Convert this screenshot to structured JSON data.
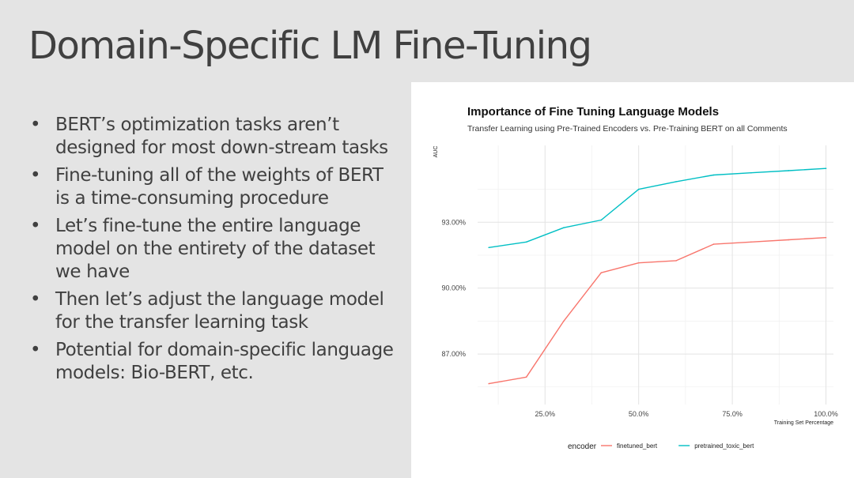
{
  "slide": {
    "title": "Domain-Specific LM Fine-Tuning",
    "bullets": [
      "BERT’s optimization tasks aren’t designed for most down-stream tasks",
      "Fine-tuning all of the weights of BERT is a time-consuming procedure",
      "Let’s fine-tune the entire language model on the entirety of the dataset we have",
      "Then let’s adjust the language model for the transfer learning task",
      "Potential for domain-specific language models: Bio-BERT, etc."
    ]
  },
  "chart_data": {
    "type": "line",
    "title": "Importance of Fine Tuning Language Models",
    "subtitle": "Transfer Learning using Pre-Trained Encoders vs. Pre-Training BERT on all Comments",
    "xlabel": "Training Set Percentage",
    "ylabel": "AUC",
    "x": [
      10,
      20,
      30,
      40,
      50,
      60,
      70,
      80,
      90,
      100
    ],
    "xlim": [
      7,
      102
    ],
    "ylim": [
      84.7,
      96.5
    ],
    "x_ticks": [
      25,
      50,
      75,
      100
    ],
    "x_tick_labels": [
      "25.0%",
      "50.0%",
      "75.0%",
      "100.0%"
    ],
    "y_ticks": [
      87,
      90,
      93
    ],
    "y_tick_labels": [
      "87.00%",
      "90.00%",
      "93.00%"
    ],
    "grid": true,
    "legend": {
      "title": "encoder",
      "position": "bottom"
    },
    "series": [
      {
        "name": "finetuned_bert",
        "color": "#f8766d",
        "values": [
          85.65,
          85.95,
          88.5,
          90.7,
          91.15,
          91.25,
          92.0,
          92.1,
          92.2,
          92.3
        ]
      },
      {
        "name": "pretrained_toxic_bert",
        "color": "#00bfc4",
        "values": [
          91.85,
          92.1,
          92.75,
          93.1,
          94.5,
          94.85,
          95.15,
          95.25,
          95.35,
          95.45
        ]
      }
    ]
  }
}
